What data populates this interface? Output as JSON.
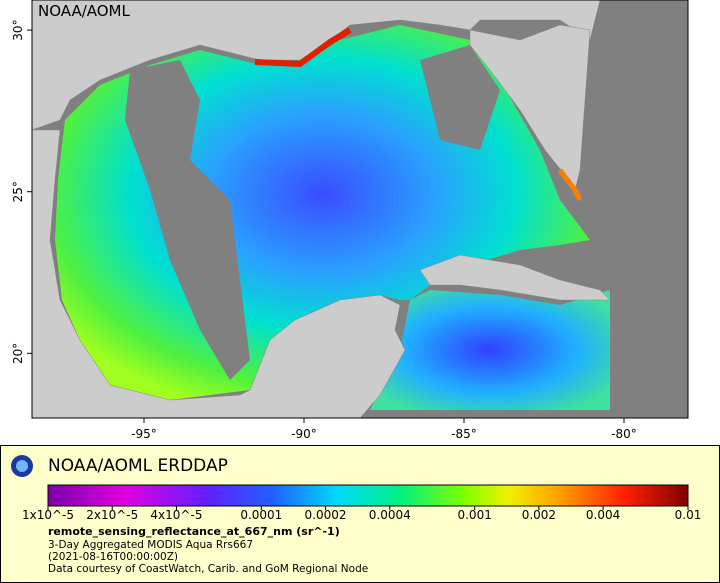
{
  "map": {
    "credit": "NOAA/AOML",
    "lon_range": [
      -98.5,
      -78
    ],
    "lat_range": [
      18,
      30.93
    ],
    "lon_ticks": [
      {
        "value": -95,
        "label": "-95°"
      },
      {
        "value": -90,
        "label": "-90°"
      },
      {
        "value": -85,
        "label": "-85°"
      },
      {
        "value": -80,
        "label": "-80°"
      }
    ],
    "lat_ticks": [
      {
        "value": 30,
        "label": "30°"
      },
      {
        "value": 25,
        "label": "25°"
      },
      {
        "value": 20,
        "label": "20°"
      }
    ]
  },
  "legend": {
    "title": "NOAA/AOML ERDDAP",
    "scale_range": [
      1e-05,
      0.01
    ],
    "scale_ticks": [
      {
        "value": 1e-05,
        "label": "1x10^-5"
      },
      {
        "value": 2e-05,
        "label": "2x10^-5"
      },
      {
        "value": 4e-05,
        "label": "4x10^-5"
      },
      {
        "value": 0.0001,
        "label": "0.0001"
      },
      {
        "value": 0.0002,
        "label": "0.0002"
      },
      {
        "value": 0.0004,
        "label": "0.0004"
      },
      {
        "value": 0.001,
        "label": "0.001"
      },
      {
        "value": 0.002,
        "label": "0.002"
      },
      {
        "value": 0.004,
        "label": "0.004"
      },
      {
        "value": 0.01,
        "label": "0.01"
      }
    ],
    "variable": "remote_sensing_reflectance_at_667_nm (sr^-1)",
    "lines": [
      "3-Day Aggregated MODIS Aqua Rrs667",
      "(2021-08-16T00:00:00Z)",
      "Data courtesy of CoastWatch, Carib. and GoM Regional Node"
    ]
  }
}
